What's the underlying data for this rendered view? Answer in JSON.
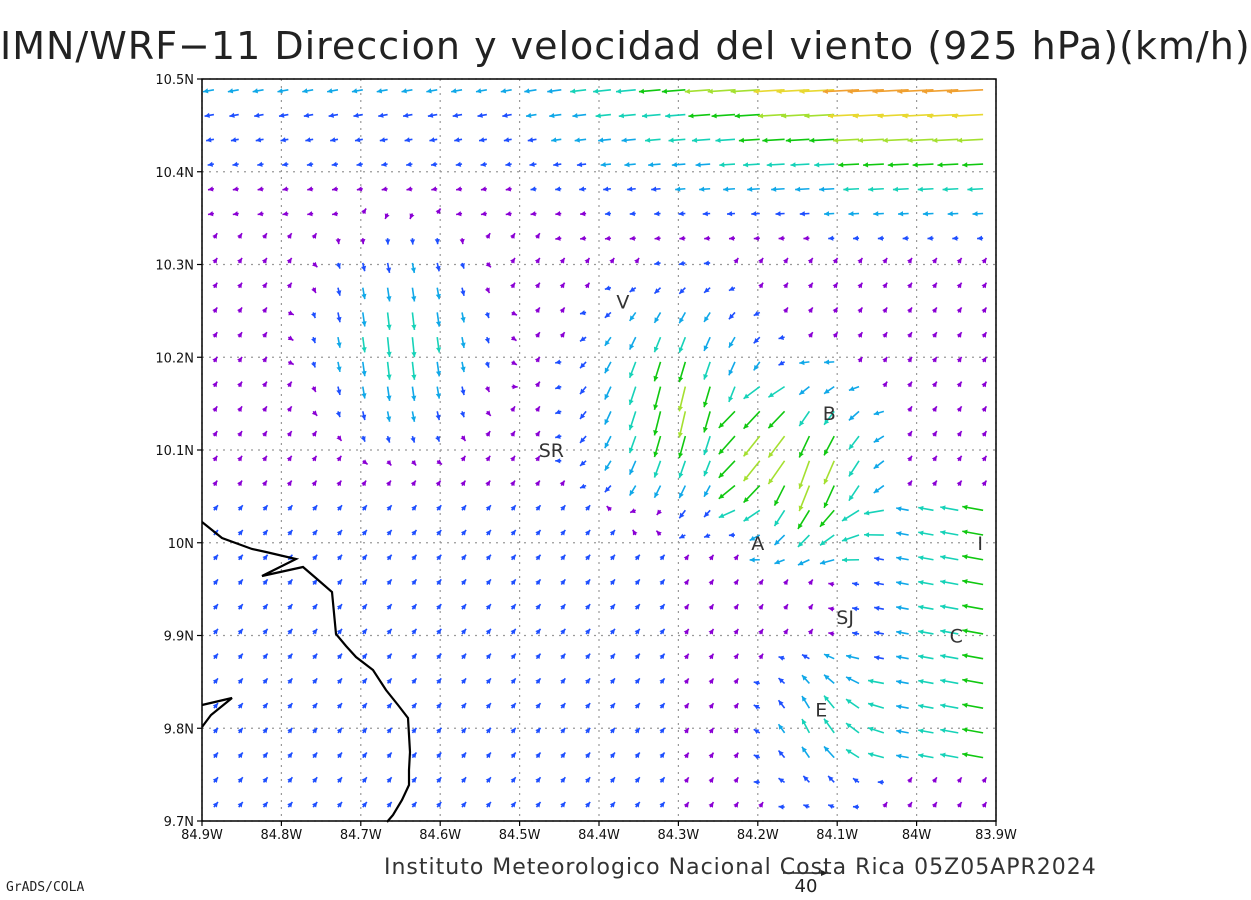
{
  "title": "IMN/WRF−11 Direccion y velocidad del viento (925 hPa)(km/h)",
  "credit": "Instituto Meteorologico Nacional Costa Rica 05Z05APR2024",
  "software": "GrADS/COLA",
  "map": {
    "lon_range": [
      -84.9,
      -83.9
    ],
    "lat_range": [
      9.7,
      10.5
    ],
    "grid_lines": "dotted",
    "x_tick_labels": [
      "84.9W",
      "84.8W",
      "84.7W",
      "84.6W",
      "84.5W",
      "84.4W",
      "84.3W",
      "84.2W",
      "84.1W",
      "84W",
      "83.9W"
    ],
    "y_tick_labels": [
      "9.7N",
      "9.8N",
      "9.9N",
      "10N",
      "10.1N",
      "10.2N",
      "10.3N",
      "10.4N",
      "10.5N"
    ],
    "places": [
      {
        "label": "V",
        "lon": -84.37,
        "lat": 10.26
      },
      {
        "label": "B",
        "lon": -84.11,
        "lat": 10.14
      },
      {
        "label": "SR",
        "lon": -84.46,
        "lat": 10.1
      },
      {
        "label": "A",
        "lon": -84.2,
        "lat": 10.0
      },
      {
        "label": "I",
        "lon": -83.92,
        "lat": 10.0
      },
      {
        "label": "SJ",
        "lon": -84.09,
        "lat": 9.92
      },
      {
        "label": "C",
        "lon": -83.95,
        "lat": 9.9
      },
      {
        "label": "E",
        "lon": -84.12,
        "lat": 9.82
      }
    ],
    "reference_vector": {
      "value": "40",
      "unit": "km/h"
    },
    "speed_colors": {
      "calm": "#8a00d4",
      "light": "#1e4fff",
      "moderate_low": "#10a8e8",
      "moderate": "#16d2b8",
      "fresh": "#10c810",
      "strong": "#a4e030",
      "stronger": "#e8d830",
      "very_strong": "#f0a030",
      "intense": "#e85a3a",
      "extreme": "#e81050"
    },
    "coastline_color": "#000000"
  }
}
